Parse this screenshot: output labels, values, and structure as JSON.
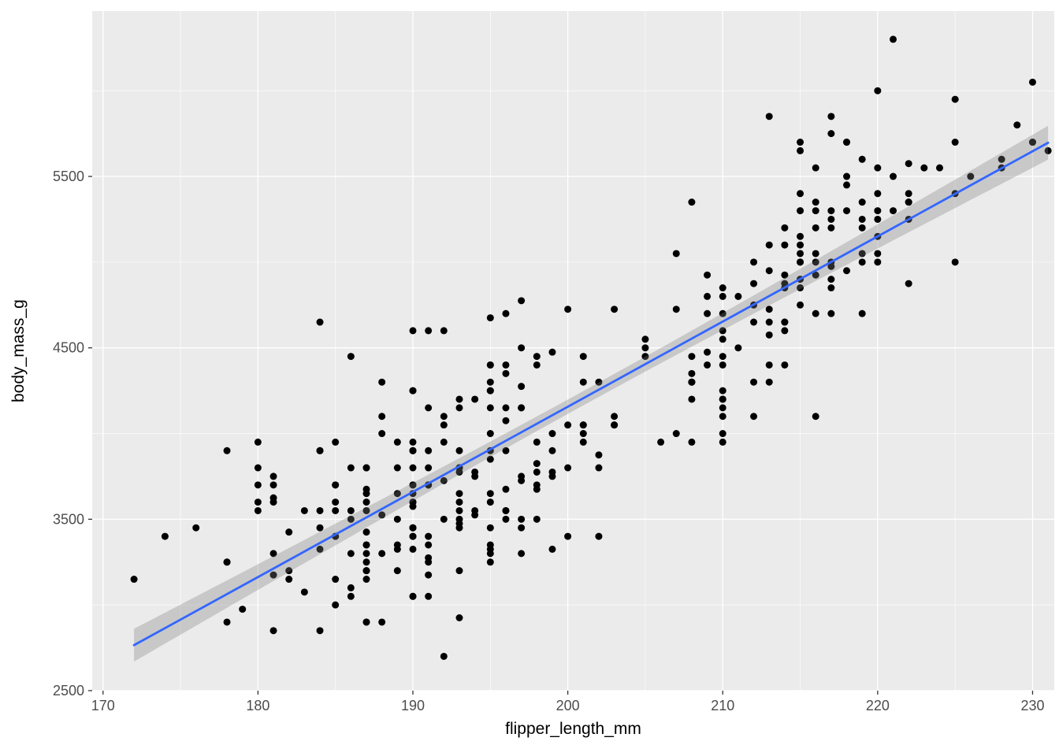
{
  "figure": {
    "xlabel": "flipper_length_mm",
    "ylabel": "body_mass_g"
  },
  "chart_data": {
    "type": "scatter",
    "title": "",
    "xlabel": "flipper_length_mm",
    "ylabel": "body_mass_g",
    "xlim": [
      169.3,
      231.4
    ],
    "ylim": [
      2500,
      6465
    ],
    "x_ticks": [
      170,
      180,
      190,
      200,
      210,
      220,
      230
    ],
    "y_ticks": [
      2500,
      3500,
      4500,
      5500
    ],
    "x_minor": [
      175,
      185,
      195,
      205,
      215,
      225
    ],
    "y_minor": [
      3000,
      4000,
      5000,
      6000
    ],
    "grid": true,
    "legend": "none",
    "panel_bg": "#EBEBEB",
    "grid_color": "#FFFFFF",
    "tick_color": "#333333",
    "tick_label_color": "#4D4D4D",
    "point_color": "#000000",
    "point_radius": 4.5,
    "smooth": {
      "method": "lm",
      "color": "#3366FF",
      "width": 2.8,
      "x_start": 172,
      "x_end": 231,
      "intercept": -5780.83,
      "slope": 49.686,
      "ribbon": {
        "fill": "#7F7F7F",
        "opacity": 0.32,
        "t": 1.967,
        "sigma": 393.3,
        "n": 342,
        "x_mean": 200.92,
        "sxx": 67426
      }
    },
    "points": [
      [
        181,
        3750
      ],
      [
        186,
        3800
      ],
      [
        195,
        3250
      ],
      [
        193,
        3450
      ],
      [
        190,
        3650
      ],
      [
        181,
        3625
      ],
      [
        195,
        4675
      ],
      [
        193,
        3475
      ],
      [
        190,
        4250
      ],
      [
        186,
        3300
      ],
      [
        180,
        3700
      ],
      [
        182,
        3200
      ],
      [
        191,
        3800
      ],
      [
        198,
        4400
      ],
      [
        185,
        3700
      ],
      [
        195,
        3450
      ],
      [
        197,
        4500
      ],
      [
        184,
        3325
      ],
      [
        194,
        4200
      ],
      [
        174,
        3400
      ],
      [
        180,
        3600
      ],
      [
        189,
        3800
      ],
      [
        185,
        3950
      ],
      [
        180,
        3800
      ],
      [
        187,
        3800
      ],
      [
        183,
        3550
      ],
      [
        187,
        3200
      ],
      [
        172,
        3150
      ],
      [
        180,
        3950
      ],
      [
        178,
        3250
      ],
      [
        178,
        3900
      ],
      [
        188,
        3300
      ],
      [
        184,
        3900
      ],
      [
        195,
        3325
      ],
      [
        196,
        4150
      ],
      [
        190,
        3950
      ],
      [
        180,
        3550
      ],
      [
        181,
        3300
      ],
      [
        184,
        4650
      ],
      [
        182,
        3150
      ],
      [
        195,
        3900
      ],
      [
        186,
        3100
      ],
      [
        196,
        4400
      ],
      [
        185,
        3000
      ],
      [
        190,
        4600
      ],
      [
        182,
        3425
      ],
      [
        179,
        2975
      ],
      [
        190,
        3450
      ],
      [
        191,
        4150
      ],
      [
        186,
        3500
      ],
      [
        188,
        4300
      ],
      [
        190,
        3450
      ],
      [
        200,
        4050
      ],
      [
        187,
        2900
      ],
      [
        191,
        3700
      ],
      [
        186,
        3550
      ],
      [
        193,
        3800
      ],
      [
        181,
        2850
      ],
      [
        194,
        3750
      ],
      [
        185,
        3150
      ],
      [
        195,
        4400
      ],
      [
        185,
        3600
      ],
      [
        192,
        4050
      ],
      [
        184,
        2850
      ],
      [
        192,
        3950
      ],
      [
        195,
        3350
      ],
      [
        188,
        4100
      ],
      [
        190,
        3050
      ],
      [
        198,
        4450
      ],
      [
        190,
        3600
      ],
      [
        190,
        3900
      ],
      [
        196,
        3550
      ],
      [
        197,
        4150
      ],
      [
        190,
        3700
      ],
      [
        195,
        4250
      ],
      [
        191,
        3700
      ],
      [
        184,
        3900
      ],
      [
        187,
        3550
      ],
      [
        195,
        4000
      ],
      [
        189,
        3200
      ],
      [
        196,
        4700
      ],
      [
        187,
        3800
      ],
      [
        193,
        4200
      ],
      [
        191,
        3350
      ],
      [
        194,
        3550
      ],
      [
        190,
        3800
      ],
      [
        189,
        3500
      ],
      [
        189,
        3950
      ],
      [
        190,
        3600
      ],
      [
        202,
        4300
      ],
      [
        205,
        4450
      ],
      [
        185,
        3400
      ],
      [
        186,
        4450
      ],
      [
        187,
        3300
      ],
      [
        208,
        4300
      ],
      [
        190,
        3700
      ],
      [
        196,
        4350
      ],
      [
        178,
        2900
      ],
      [
        192,
        4100
      ],
      [
        192,
        3725
      ],
      [
        203,
        4725
      ],
      [
        183,
        3075
      ],
      [
        190,
        4250
      ],
      [
        193,
        2925
      ],
      [
        184,
        3550
      ],
      [
        199,
        3750
      ],
      [
        190,
        3900
      ],
      [
        181,
        3175
      ],
      [
        197,
        4775
      ],
      [
        198,
        3825
      ],
      [
        191,
        4600
      ],
      [
        193,
        3200
      ],
      [
        197,
        4275
      ],
      [
        191,
        3900
      ],
      [
        196,
        4075
      ],
      [
        188,
        2900
      ],
      [
        199,
        3775
      ],
      [
        189,
        3350
      ],
      [
        189,
        3325
      ],
      [
        187,
        3150
      ],
      [
        198,
        3500
      ],
      [
        176,
        3450
      ],
      [
        202,
        3875
      ],
      [
        186,
        3050
      ],
      [
        199,
        4000
      ],
      [
        191,
        3275
      ],
      [
        195,
        4300
      ],
      [
        191,
        3050
      ],
      [
        210,
        4000
      ],
      [
        190,
        3325
      ],
      [
        197,
        3500
      ],
      [
        193,
        3500
      ],
      [
        199,
        4475
      ],
      [
        187,
        3425
      ],
      [
        190,
        3900
      ],
      [
        191,
        3175
      ],
      [
        200,
        4725
      ],
      [
        185,
        3550
      ],
      [
        193,
        3900
      ],
      [
        193,
        4150
      ],
      [
        187,
        3600
      ],
      [
        188,
        4000
      ],
      [
        190,
        3400
      ],
      [
        192,
        4600
      ],
      [
        185,
        3400
      ],
      [
        190,
        3050
      ],
      [
        184,
        3450
      ],
      [
        195,
        4250
      ],
      [
        193,
        3550
      ],
      [
        187,
        3675
      ],
      [
        201,
        4000
      ],
      [
        192,
        3500
      ],
      [
        196,
        3900
      ],
      [
        193,
        3650
      ],
      [
        188,
        3525
      ],
      [
        197,
        3725
      ],
      [
        198,
        3950
      ],
      [
        178,
        3250
      ],
      [
        197,
        3750
      ],
      [
        195,
        4150
      ],
      [
        198,
        3700
      ],
      [
        193,
        3800
      ],
      [
        194,
        3775
      ],
      [
        185,
        3700
      ],
      [
        201,
        4050
      ],
      [
        190,
        3575
      ],
      [
        201,
        4050
      ],
      [
        197,
        3300
      ],
      [
        181,
        3700
      ],
      [
        190,
        3450
      ],
      [
        195,
        4400
      ],
      [
        181,
        3600
      ],
      [
        191,
        3400
      ],
      [
        187,
        2900
      ],
      [
        193,
        3800
      ],
      [
        195,
        3300
      ],
      [
        197,
        4150
      ],
      [
        200,
        3400
      ],
      [
        200,
        3800
      ],
      [
        191,
        3700
      ],
      [
        205,
        4550
      ],
      [
        187,
        3200
      ],
      [
        201,
        4300
      ],
      [
        187,
        3350
      ],
      [
        203,
        4100
      ],
      [
        195,
        3600
      ],
      [
        199,
        3900
      ],
      [
        195,
        3850
      ],
      [
        210,
        4800
      ],
      [
        192,
        2700
      ],
      [
        205,
        4500
      ],
      [
        210,
        3950
      ],
      [
        187,
        3650
      ],
      [
        196,
        3550
      ],
      [
        196,
        3500
      ],
      [
        196,
        3675
      ],
      [
        201,
        4450
      ],
      [
        190,
        3400
      ],
      [
        212,
        4300
      ],
      [
        187,
        3250
      ],
      [
        198,
        3675
      ],
      [
        199,
        3325
      ],
      [
        201,
        3950
      ],
      [
        193,
        3600
      ],
      [
        203,
        4050
      ],
      [
        187,
        3350
      ],
      [
        197,
        3450
      ],
      [
        191,
        3250
      ],
      [
        203,
        4050
      ],
      [
        202,
        3800
      ],
      [
        194,
        3525
      ],
      [
        206,
        3950
      ],
      [
        189,
        3650
      ],
      [
        195,
        3650
      ],
      [
        207,
        4000
      ],
      [
        202,
        3400
      ],
      [
        193,
        3775
      ],
      [
        210,
        4100
      ],
      [
        198,
        3775
      ],
      [
        211,
        4500
      ],
      [
        230,
        5700
      ],
      [
        210,
        4450
      ],
      [
        218,
        5700
      ],
      [
        215,
        5400
      ],
      [
        210,
        4550
      ],
      [
        211,
        4800
      ],
      [
        219,
        5200
      ],
      [
        209,
        4400
      ],
      [
        215,
        5150
      ],
      [
        214,
        4650
      ],
      [
        216,
        5550
      ],
      [
        214,
        4650
      ],
      [
        213,
        5850
      ],
      [
        210,
        4200
      ],
      [
        217,
        5850
      ],
      [
        210,
        4150
      ],
      [
        221,
        6300
      ],
      [
        209,
        4800
      ],
      [
        222,
        5350
      ],
      [
        218,
        5700
      ],
      [
        215,
        5000
      ],
      [
        213,
        4400
      ],
      [
        215,
        5050
      ],
      [
        215,
        5000
      ],
      [
        215,
        5100
      ],
      [
        216,
        4100
      ],
      [
        215,
        5650
      ],
      [
        210,
        4600
      ],
      [
        220,
        5550
      ],
      [
        222,
        5250
      ],
      [
        209,
        4700
      ],
      [
        207,
        5050
      ],
      [
        230,
        6050
      ],
      [
        220,
        5150
      ],
      [
        220,
        5400
      ],
      [
        213,
        4950
      ],
      [
        219,
        5250
      ],
      [
        208,
        4350
      ],
      [
        208,
        5350
      ],
      [
        208,
        3950
      ],
      [
        225,
        5700
      ],
      [
        208,
        4300
      ],
      [
        216,
        4925
      ],
      [
        222,
        5575
      ],
      [
        217,
        4975
      ],
      [
        210,
        4250
      ],
      [
        225,
        5400
      ],
      [
        213,
        5100
      ],
      [
        215,
        5300
      ],
      [
        210,
        4850
      ],
      [
        220,
        5300
      ],
      [
        210,
        4400
      ],
      [
        225,
        5000
      ],
      [
        217,
        4900
      ],
      [
        220,
        5050
      ],
      [
        208,
        4300
      ],
      [
        220,
        5000
      ],
      [
        208,
        4450
      ],
      [
        224,
        5550
      ],
      [
        208,
        4200
      ],
      [
        221,
        5300
      ],
      [
        214,
        4400
      ],
      [
        231,
        5650
      ],
      [
        219,
        4700
      ],
      [
        230,
        5700
      ],
      [
        217,
        5200
      ],
      [
        209,
        4475
      ],
      [
        210,
        4200
      ],
      [
        214,
        4925
      ],
      [
        217,
        4850
      ],
      [
        214,
        4875
      ],
      [
        222,
        4875
      ],
      [
        218,
        5500
      ],
      [
        215,
        4900
      ],
      [
        212,
        4750
      ],
      [
        213,
        4725
      ],
      [
        216,
        5200
      ],
      [
        217,
        5250
      ],
      [
        214,
        4850
      ],
      [
        216,
        5350
      ],
      [
        213,
        4650
      ],
      [
        219,
        5600
      ],
      [
        221,
        5500
      ],
      [
        212,
        4875
      ],
      [
        218,
        4950
      ],
      [
        215,
        5700
      ],
      [
        218,
        5450
      ],
      [
        215,
        4750
      ],
      [
        219,
        5000
      ],
      [
        215,
        4850
      ],
      [
        216,
        5000
      ],
      [
        217,
        5750
      ],
      [
        212,
        5000
      ],
      [
        214,
        5100
      ],
      [
        216,
        5300
      ],
      [
        213,
        4575
      ],
      [
        210,
        4700
      ],
      [
        217,
        4700
      ],
      [
        229,
        5800
      ],
      [
        223,
        5550
      ],
      [
        214,
        4600
      ],
      [
        217,
        5300
      ],
      [
        216,
        4700
      ],
      [
        220,
        5250
      ],
      [
        222,
        5400
      ],
      [
        219,
        5050
      ],
      [
        213,
        4300
      ],
      [
        212,
        4100
      ],
      [
        218,
        5300
      ],
      [
        219,
        5350
      ],
      [
        216,
        5050
      ],
      [
        217,
        5000
      ],
      [
        214,
        5200
      ],
      [
        220,
        6000
      ],
      [
        226,
        5500
      ],
      [
        222,
        5350
      ],
      [
        209,
        4925
      ],
      [
        207,
        4725
      ],
      [
        225,
        5950
      ],
      [
        228,
        5550
      ],
      [
        228,
        5600
      ],
      [
        212,
        4650
      ]
    ]
  }
}
